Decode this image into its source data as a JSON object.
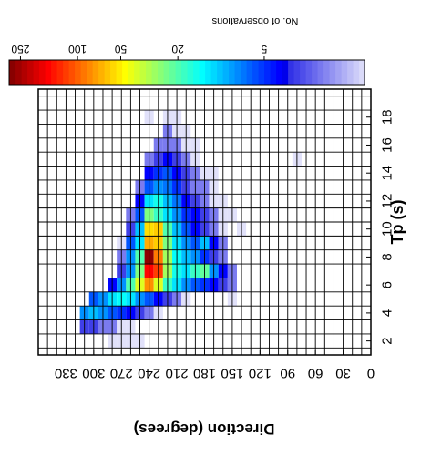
{
  "chart_data": {
    "type": "heatmap",
    "title": "",
    "xlabel": "Tp (s)",
    "ylabel": "Direction (degrees)",
    "x_ticks": [
      2,
      4,
      6,
      8,
      10,
      12,
      14,
      16,
      18
    ],
    "y_ticks": [
      0,
      30,
      60,
      90,
      120,
      150,
      180,
      210,
      240,
      270,
      300,
      330
    ],
    "xlim": [
      1,
      20
    ],
    "ylim": [
      0,
      360
    ],
    "x_bin_width": 1,
    "y_bin_width": 10,
    "colorbar": {
      "label": "No. of observations",
      "scale": "log",
      "ticks": [
        5,
        20,
        50,
        100,
        250
      ],
      "range": [
        1,
        300
      ],
      "colormap": "jet"
    },
    "grid": true,
    "cells": [
      {
        "tp": 2,
        "dir": 280,
        "count": 1
      },
      {
        "tp": 2,
        "dir": 270,
        "count": 1
      },
      {
        "tp": 2,
        "dir": 260,
        "count": 1
      },
      {
        "tp": 2,
        "dir": 250,
        "count": 1
      },
      {
        "tp": 3,
        "dir": 310,
        "count": 3
      },
      {
        "tp": 3,
        "dir": 300,
        "count": 3
      },
      {
        "tp": 3,
        "dir": 290,
        "count": 2
      },
      {
        "tp": 3,
        "dir": 280,
        "count": 2
      },
      {
        "tp": 3,
        "dir": 270,
        "count": 1
      },
      {
        "tp": 3,
        "dir": 260,
        "count": 1
      },
      {
        "tp": 4,
        "dir": 310,
        "count": 8
      },
      {
        "tp": 4,
        "dir": 300,
        "count": 10
      },
      {
        "tp": 4,
        "dir": 290,
        "count": 8
      },
      {
        "tp": 4,
        "dir": 280,
        "count": 6
      },
      {
        "tp": 4,
        "dir": 270,
        "count": 5
      },
      {
        "tp": 4,
        "dir": 260,
        "count": 4
      },
      {
        "tp": 4,
        "dir": 250,
        "count": 3
      },
      {
        "tp": 4,
        "dir": 240,
        "count": 2
      },
      {
        "tp": 4,
        "dir": 230,
        "count": 1
      },
      {
        "tp": 5,
        "dir": 300,
        "count": 6
      },
      {
        "tp": 5,
        "dir": 290,
        "count": 8
      },
      {
        "tp": 5,
        "dir": 280,
        "count": 12
      },
      {
        "tp": 5,
        "dir": 270,
        "count": 14
      },
      {
        "tp": 5,
        "dir": 260,
        "count": 12
      },
      {
        "tp": 5,
        "dir": 250,
        "count": 8
      },
      {
        "tp": 5,
        "dir": 240,
        "count": 6
      },
      {
        "tp": 5,
        "dir": 230,
        "count": 4
      },
      {
        "tp": 5,
        "dir": 220,
        "count": 3
      },
      {
        "tp": 5,
        "dir": 210,
        "count": 2
      },
      {
        "tp": 5,
        "dir": 200,
        "count": 1
      },
      {
        "tp": 5,
        "dir": 150,
        "count": 1
      },
      {
        "tp": 6,
        "dir": 280,
        "count": 4
      },
      {
        "tp": 6,
        "dir": 270,
        "count": 8
      },
      {
        "tp": 6,
        "dir": 260,
        "count": 20
      },
      {
        "tp": 6,
        "dir": 250,
        "count": 40
      },
      {
        "tp": 6,
        "dir": 240,
        "count": 80
      },
      {
        "tp": 6,
        "dir": 230,
        "count": 40
      },
      {
        "tp": 6,
        "dir": 220,
        "count": 18
      },
      {
        "tp": 6,
        "dir": 210,
        "count": 12
      },
      {
        "tp": 6,
        "dir": 200,
        "count": 8
      },
      {
        "tp": 6,
        "dir": 190,
        "count": 6
      },
      {
        "tp": 6,
        "dir": 180,
        "count": 5
      },
      {
        "tp": 6,
        "dir": 170,
        "count": 4
      },
      {
        "tp": 6,
        "dir": 160,
        "count": 3
      },
      {
        "tp": 6,
        "dir": 150,
        "count": 2
      },
      {
        "tp": 7,
        "dir": 270,
        "count": 3
      },
      {
        "tp": 7,
        "dir": 260,
        "count": 8
      },
      {
        "tp": 7,
        "dir": 250,
        "count": 25
      },
      {
        "tp": 7,
        "dir": 240,
        "count": 160
      },
      {
        "tp": 7,
        "dir": 230,
        "count": 120
      },
      {
        "tp": 7,
        "dir": 220,
        "count": 30
      },
      {
        "tp": 7,
        "dir": 210,
        "count": 15
      },
      {
        "tp": 7,
        "dir": 200,
        "count": 12
      },
      {
        "tp": 7,
        "dir": 190,
        "count": 18
      },
      {
        "tp": 7,
        "dir": 180,
        "count": 22
      },
      {
        "tp": 7,
        "dir": 170,
        "count": 8
      },
      {
        "tp": 7,
        "dir": 160,
        "count": 4
      },
      {
        "tp": 7,
        "dir": 150,
        "count": 2
      },
      {
        "tp": 8,
        "dir": 270,
        "count": 2
      },
      {
        "tp": 8,
        "dir": 260,
        "count": 8
      },
      {
        "tp": 8,
        "dir": 250,
        "count": 20
      },
      {
        "tp": 8,
        "dir": 240,
        "count": 280
      },
      {
        "tp": 8,
        "dir": 230,
        "count": 90
      },
      {
        "tp": 8,
        "dir": 220,
        "count": 30
      },
      {
        "tp": 8,
        "dir": 210,
        "count": 14
      },
      {
        "tp": 8,
        "dir": 200,
        "count": 10
      },
      {
        "tp": 8,
        "dir": 190,
        "count": 8
      },
      {
        "tp": 8,
        "dir": 180,
        "count": 5
      },
      {
        "tp": 8,
        "dir": 170,
        "count": 3
      },
      {
        "tp": 8,
        "dir": 160,
        "count": 2
      },
      {
        "tp": 9,
        "dir": 270,
        "count": 1
      },
      {
        "tp": 9,
        "dir": 260,
        "count": 6
      },
      {
        "tp": 9,
        "dir": 250,
        "count": 12
      },
      {
        "tp": 9,
        "dir": 240,
        "count": 70
      },
      {
        "tp": 9,
        "dir": 230,
        "count": 60
      },
      {
        "tp": 9,
        "dir": 220,
        "count": 25
      },
      {
        "tp": 9,
        "dir": 210,
        "count": 12
      },
      {
        "tp": 9,
        "dir": 200,
        "count": 8
      },
      {
        "tp": 9,
        "dir": 190,
        "count": 6
      },
      {
        "tp": 9,
        "dir": 180,
        "count": 10
      },
      {
        "tp": 9,
        "dir": 170,
        "count": 4
      },
      {
        "tp": 9,
        "dir": 160,
        "count": 2
      },
      {
        "tp": 10,
        "dir": 260,
        "count": 3
      },
      {
        "tp": 10,
        "dir": 250,
        "count": 10
      },
      {
        "tp": 10,
        "dir": 240,
        "count": 55
      },
      {
        "tp": 10,
        "dir": 230,
        "count": 60
      },
      {
        "tp": 10,
        "dir": 220,
        "count": 20
      },
      {
        "tp": 10,
        "dir": 210,
        "count": 10
      },
      {
        "tp": 10,
        "dir": 200,
        "count": 6
      },
      {
        "tp": 10,
        "dir": 190,
        "count": 4
      },
      {
        "tp": 10,
        "dir": 180,
        "count": 3
      },
      {
        "tp": 10,
        "dir": 170,
        "count": 2
      },
      {
        "tp": 10,
        "dir": 160,
        "count": 1
      },
      {
        "tp": 10,
        "dir": 140,
        "count": 1
      },
      {
        "tp": 11,
        "dir": 260,
        "count": 2
      },
      {
        "tp": 11,
        "dir": 250,
        "count": 6
      },
      {
        "tp": 11,
        "dir": 240,
        "count": 25
      },
      {
        "tp": 11,
        "dir": 230,
        "count": 18
      },
      {
        "tp": 11,
        "dir": 220,
        "count": 12
      },
      {
        "tp": 11,
        "dir": 210,
        "count": 8
      },
      {
        "tp": 11,
        "dir": 200,
        "count": 5
      },
      {
        "tp": 11,
        "dir": 190,
        "count": 4
      },
      {
        "tp": 11,
        "dir": 180,
        "count": 3
      },
      {
        "tp": 11,
        "dir": 170,
        "count": 2
      },
      {
        "tp": 11,
        "dir": 160,
        "count": 1
      },
      {
        "tp": 11,
        "dir": 150,
        "count": 1
      },
      {
        "tp": 12,
        "dir": 250,
        "count": 4
      },
      {
        "tp": 12,
        "dir": 240,
        "count": 12
      },
      {
        "tp": 12,
        "dir": 230,
        "count": 15
      },
      {
        "tp": 12,
        "dir": 220,
        "count": 10
      },
      {
        "tp": 12,
        "dir": 210,
        "count": 7
      },
      {
        "tp": 12,
        "dir": 200,
        "count": 4
      },
      {
        "tp": 12,
        "dir": 190,
        "count": 3
      },
      {
        "tp": 12,
        "dir": 180,
        "count": 2
      },
      {
        "tp": 12,
        "dir": 170,
        "count": 1
      },
      {
        "tp": 12,
        "dir": 160,
        "count": 1
      },
      {
        "tp": 13,
        "dir": 250,
        "count": 2
      },
      {
        "tp": 13,
        "dir": 240,
        "count": 6
      },
      {
        "tp": 13,
        "dir": 230,
        "count": 8
      },
      {
        "tp": 13,
        "dir": 220,
        "count": 7
      },
      {
        "tp": 13,
        "dir": 210,
        "count": 5
      },
      {
        "tp": 13,
        "dir": 200,
        "count": 3
      },
      {
        "tp": 13,
        "dir": 190,
        "count": 2
      },
      {
        "tp": 13,
        "dir": 180,
        "count": 2
      },
      {
        "tp": 13,
        "dir": 170,
        "count": 1
      },
      {
        "tp": 14,
        "dir": 240,
        "count": 4
      },
      {
        "tp": 14,
        "dir": 230,
        "count": 5
      },
      {
        "tp": 14,
        "dir": 220,
        "count": 6
      },
      {
        "tp": 14,
        "dir": 210,
        "count": 4
      },
      {
        "tp": 14,
        "dir": 200,
        "count": 3
      },
      {
        "tp": 14,
        "dir": 190,
        "count": 2
      },
      {
        "tp": 14,
        "dir": 180,
        "count": 1
      },
      {
        "tp": 14,
        "dir": 170,
        "count": 1
      },
      {
        "tp": 15,
        "dir": 240,
        "count": 2
      },
      {
        "tp": 15,
        "dir": 230,
        "count": 3
      },
      {
        "tp": 15,
        "dir": 220,
        "count": 4
      },
      {
        "tp": 15,
        "dir": 210,
        "count": 3
      },
      {
        "tp": 15,
        "dir": 200,
        "count": 2
      },
      {
        "tp": 15,
        "dir": 190,
        "count": 1
      },
      {
        "tp": 15,
        "dir": 80,
        "count": 1
      },
      {
        "tp": 16,
        "dir": 230,
        "count": 2
      },
      {
        "tp": 16,
        "dir": 220,
        "count": 2
      },
      {
        "tp": 16,
        "dir": 210,
        "count": 2
      },
      {
        "tp": 16,
        "dir": 200,
        "count": 1
      },
      {
        "tp": 16,
        "dir": 190,
        "count": 1
      },
      {
        "tp": 17,
        "dir": 220,
        "count": 2
      },
      {
        "tp": 17,
        "dir": 210,
        "count": 1
      },
      {
        "tp": 17,
        "dir": 200,
        "count": 1
      },
      {
        "tp": 18,
        "dir": 240,
        "count": 1
      },
      {
        "tp": 18,
        "dir": 220,
        "count": 1
      },
      {
        "tp": 18,
        "dir": 210,
        "count": 1
      }
    ]
  }
}
